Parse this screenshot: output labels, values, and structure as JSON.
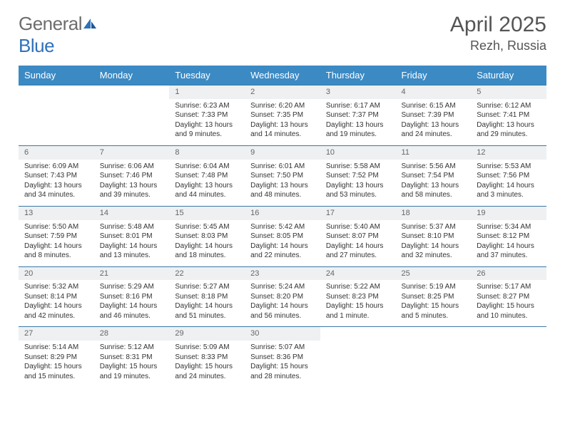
{
  "brand": {
    "part1": "General",
    "part2": "Blue"
  },
  "title": "April 2025",
  "location": "Rezh, Russia",
  "colors": {
    "headerBg": "#3b8ac4",
    "dayBg": "#eef0f2",
    "rule": "#3b78a8",
    "text": "#333333",
    "muted": "#6d6d6d",
    "brandBlue": "#2f72b9"
  },
  "weekdays": [
    "Sunday",
    "Monday",
    "Tuesday",
    "Wednesday",
    "Thursday",
    "Friday",
    "Saturday"
  ],
  "weeks": [
    [
      null,
      null,
      {
        "n": "1",
        "sunrise": "Sunrise: 6:23 AM",
        "sunset": "Sunset: 7:33 PM",
        "daylight": "Daylight: 13 hours and 9 minutes."
      },
      {
        "n": "2",
        "sunrise": "Sunrise: 6:20 AM",
        "sunset": "Sunset: 7:35 PM",
        "daylight": "Daylight: 13 hours and 14 minutes."
      },
      {
        "n": "3",
        "sunrise": "Sunrise: 6:17 AM",
        "sunset": "Sunset: 7:37 PM",
        "daylight": "Daylight: 13 hours and 19 minutes."
      },
      {
        "n": "4",
        "sunrise": "Sunrise: 6:15 AM",
        "sunset": "Sunset: 7:39 PM",
        "daylight": "Daylight: 13 hours and 24 minutes."
      },
      {
        "n": "5",
        "sunrise": "Sunrise: 6:12 AM",
        "sunset": "Sunset: 7:41 PM",
        "daylight": "Daylight: 13 hours and 29 minutes."
      }
    ],
    [
      {
        "n": "6",
        "sunrise": "Sunrise: 6:09 AM",
        "sunset": "Sunset: 7:43 PM",
        "daylight": "Daylight: 13 hours and 34 minutes."
      },
      {
        "n": "7",
        "sunrise": "Sunrise: 6:06 AM",
        "sunset": "Sunset: 7:46 PM",
        "daylight": "Daylight: 13 hours and 39 minutes."
      },
      {
        "n": "8",
        "sunrise": "Sunrise: 6:04 AM",
        "sunset": "Sunset: 7:48 PM",
        "daylight": "Daylight: 13 hours and 44 minutes."
      },
      {
        "n": "9",
        "sunrise": "Sunrise: 6:01 AM",
        "sunset": "Sunset: 7:50 PM",
        "daylight": "Daylight: 13 hours and 48 minutes."
      },
      {
        "n": "10",
        "sunrise": "Sunrise: 5:58 AM",
        "sunset": "Sunset: 7:52 PM",
        "daylight": "Daylight: 13 hours and 53 minutes."
      },
      {
        "n": "11",
        "sunrise": "Sunrise: 5:56 AM",
        "sunset": "Sunset: 7:54 PM",
        "daylight": "Daylight: 13 hours and 58 minutes."
      },
      {
        "n": "12",
        "sunrise": "Sunrise: 5:53 AM",
        "sunset": "Sunset: 7:56 PM",
        "daylight": "Daylight: 14 hours and 3 minutes."
      }
    ],
    [
      {
        "n": "13",
        "sunrise": "Sunrise: 5:50 AM",
        "sunset": "Sunset: 7:59 PM",
        "daylight": "Daylight: 14 hours and 8 minutes."
      },
      {
        "n": "14",
        "sunrise": "Sunrise: 5:48 AM",
        "sunset": "Sunset: 8:01 PM",
        "daylight": "Daylight: 14 hours and 13 minutes."
      },
      {
        "n": "15",
        "sunrise": "Sunrise: 5:45 AM",
        "sunset": "Sunset: 8:03 PM",
        "daylight": "Daylight: 14 hours and 18 minutes."
      },
      {
        "n": "16",
        "sunrise": "Sunrise: 5:42 AM",
        "sunset": "Sunset: 8:05 PM",
        "daylight": "Daylight: 14 hours and 22 minutes."
      },
      {
        "n": "17",
        "sunrise": "Sunrise: 5:40 AM",
        "sunset": "Sunset: 8:07 PM",
        "daylight": "Daylight: 14 hours and 27 minutes."
      },
      {
        "n": "18",
        "sunrise": "Sunrise: 5:37 AM",
        "sunset": "Sunset: 8:10 PM",
        "daylight": "Daylight: 14 hours and 32 minutes."
      },
      {
        "n": "19",
        "sunrise": "Sunrise: 5:34 AM",
        "sunset": "Sunset: 8:12 PM",
        "daylight": "Daylight: 14 hours and 37 minutes."
      }
    ],
    [
      {
        "n": "20",
        "sunrise": "Sunrise: 5:32 AM",
        "sunset": "Sunset: 8:14 PM",
        "daylight": "Daylight: 14 hours and 42 minutes."
      },
      {
        "n": "21",
        "sunrise": "Sunrise: 5:29 AM",
        "sunset": "Sunset: 8:16 PM",
        "daylight": "Daylight: 14 hours and 46 minutes."
      },
      {
        "n": "22",
        "sunrise": "Sunrise: 5:27 AM",
        "sunset": "Sunset: 8:18 PM",
        "daylight": "Daylight: 14 hours and 51 minutes."
      },
      {
        "n": "23",
        "sunrise": "Sunrise: 5:24 AM",
        "sunset": "Sunset: 8:20 PM",
        "daylight": "Daylight: 14 hours and 56 minutes."
      },
      {
        "n": "24",
        "sunrise": "Sunrise: 5:22 AM",
        "sunset": "Sunset: 8:23 PM",
        "daylight": "Daylight: 15 hours and 1 minute."
      },
      {
        "n": "25",
        "sunrise": "Sunrise: 5:19 AM",
        "sunset": "Sunset: 8:25 PM",
        "daylight": "Daylight: 15 hours and 5 minutes."
      },
      {
        "n": "26",
        "sunrise": "Sunrise: 5:17 AM",
        "sunset": "Sunset: 8:27 PM",
        "daylight": "Daylight: 15 hours and 10 minutes."
      }
    ],
    [
      {
        "n": "27",
        "sunrise": "Sunrise: 5:14 AM",
        "sunset": "Sunset: 8:29 PM",
        "daylight": "Daylight: 15 hours and 15 minutes."
      },
      {
        "n": "28",
        "sunrise": "Sunrise: 5:12 AM",
        "sunset": "Sunset: 8:31 PM",
        "daylight": "Daylight: 15 hours and 19 minutes."
      },
      {
        "n": "29",
        "sunrise": "Sunrise: 5:09 AM",
        "sunset": "Sunset: 8:33 PM",
        "daylight": "Daylight: 15 hours and 24 minutes."
      },
      {
        "n": "30",
        "sunrise": "Sunrise: 5:07 AM",
        "sunset": "Sunset: 8:36 PM",
        "daylight": "Daylight: 15 hours and 28 minutes."
      },
      null,
      null,
      null
    ]
  ]
}
